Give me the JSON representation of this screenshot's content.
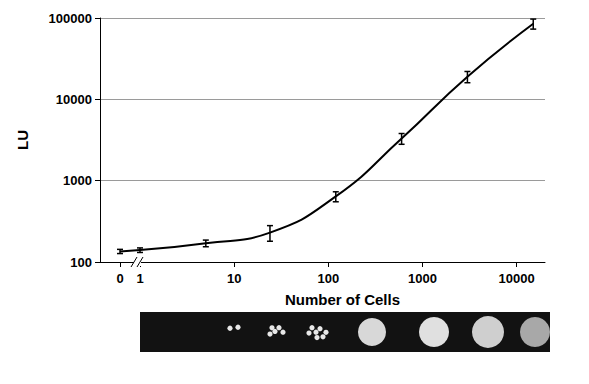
{
  "chart_data": {
    "type": "line",
    "x": [
      0,
      1,
      5,
      24,
      120,
      600,
      3000,
      15000
    ],
    "values": [
      135,
      140,
      170,
      230,
      640,
      3300,
      19000,
      85000
    ],
    "errors": [
      8,
      9,
      16,
      50,
      90,
      500,
      3000,
      12000
    ],
    "color": "#000000",
    "marker": "none",
    "line_style": "smooth",
    "x_label": "Number of Cells",
    "y_label": "LU",
    "log": true,
    "xlim": [
      0,
      20000
    ],
    "xticks": [
      0,
      1,
      10,
      100,
      1000,
      10000
    ],
    "ylim": [
      100,
      100000
    ],
    "yticks": [
      100,
      1000,
      10000,
      100000
    ],
    "grid": true
  }
}
